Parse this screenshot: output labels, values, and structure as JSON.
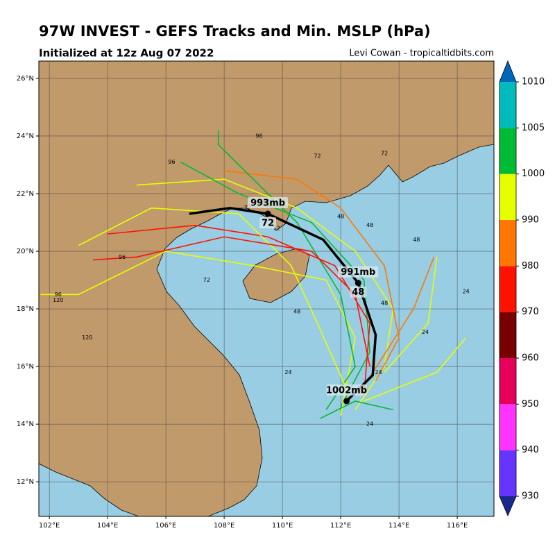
{
  "map": {
    "title": "97W INVEST - GEFS Tracks and Min. MSLP (hPa)",
    "subtitle": "Initialized at 12z Aug 07 2022",
    "credit": "Levi Cowan - tropicaltidbits.com",
    "xlim": [
      101.64,
      117.26
    ],
    "ylim": [
      10.8,
      26.6
    ],
    "xticks": [
      {
        "value": 102,
        "label": "102°E"
      },
      {
        "value": 104,
        "label": "104°E"
      },
      {
        "value": 106,
        "label": "106°E"
      },
      {
        "value": 108,
        "label": "108°E"
      },
      {
        "value": 110,
        "label": "110°E"
      },
      {
        "value": 112,
        "label": "112°E"
      },
      {
        "value": 114,
        "label": "114°E"
      },
      {
        "value": 116,
        "label": "116°E"
      }
    ],
    "yticks": [
      {
        "value": 12,
        "label": "12°N"
      },
      {
        "value": 14,
        "label": "14°N"
      },
      {
        "value": 16,
        "label": "16°N"
      },
      {
        "value": 18,
        "label": "18°N"
      },
      {
        "value": 20,
        "label": "20°N"
      },
      {
        "value": 22,
        "label": "22°N"
      },
      {
        "value": 24,
        "label": "24°N"
      },
      {
        "value": 26,
        "label": "26°N"
      }
    ],
    "grid": true,
    "colorbar": {
      "ticks": [
        930,
        940,
        950,
        960,
        970,
        980,
        990,
        1000,
        1005,
        1010
      ],
      "below_color": "#1a2a8c",
      "colors": [
        "#6633ff",
        "#ff33ff",
        "#e6005a",
        "#7a0000",
        "#ff1100",
        "#ff7700",
        "#e6ff00",
        "#00bb33",
        "#00bbbb"
      ],
      "above_color": "#0066bb"
    },
    "member_tracks": [
      {
        "color": "#e6ff00",
        "lon": [
          112.5,
          113.5,
          113.8,
          112.5,
          110.5,
          108,
          105
        ],
        "lat": [
          14.5,
          16,
          18,
          20,
          21.5,
          22.5,
          22.3
        ]
      },
      {
        "color": "#00bb33",
        "lon": [
          112,
          113,
          112.8,
          111,
          108.5,
          106.5
        ],
        "lat": [
          14.6,
          16.5,
          19,
          21,
          22,
          23.1
        ]
      },
      {
        "color": "#ff1100",
        "lon": [
          112.8,
          113,
          111.8,
          109.5,
          107,
          104
        ],
        "lat": [
          15,
          17.5,
          19.5,
          20.5,
          20.9,
          20.6
        ]
      },
      {
        "color": "#ff7700",
        "lon": [
          113.2,
          114,
          113.5,
          112,
          110.5,
          108
        ],
        "lat": [
          15.5,
          17,
          19.5,
          21.5,
          22.5,
          22.8
        ]
      },
      {
        "color": "#e6ff00",
        "lon": [
          112,
          112.5,
          111.5,
          109,
          106,
          103,
          101.7
        ],
        "lat": [
          14.3,
          17,
          19,
          19.5,
          20,
          18.5,
          18.5
        ]
      },
      {
        "color": "#e6ff00",
        "lon": [
          113.5,
          115,
          115.3
        ],
        "lat": [
          15.8,
          17.5,
          19.8
        ]
      },
      {
        "color": "#ff7700",
        "lon": [
          112.6,
          114.5,
          115.2
        ],
        "lat": [
          15,
          18,
          19.8
        ]
      },
      {
        "color": "#00bb33",
        "lon": [
          111.5,
          112.5,
          112,
          110.5,
          107.8,
          107.8
        ],
        "lat": [
          14.5,
          16,
          18.5,
          21,
          23.7,
          24.2
        ]
      },
      {
        "color": "#e6ff00",
        "lon": [
          112.3,
          111.2,
          110.3,
          108.5,
          105.5,
          103
        ],
        "lat": [
          15,
          17.5,
          19.5,
          21.3,
          21.5,
          20.2
        ]
      },
      {
        "color": "#ff1100",
        "lon": [
          113,
          112.5,
          111,
          108,
          105,
          103.5
        ],
        "lat": [
          16,
          18.5,
          20,
          20.5,
          19.8,
          19.7
        ]
      },
      {
        "color": "#e6ff00",
        "lon": [
          112.8,
          115.3,
          116.3
        ],
        "lat": [
          14.8,
          15.8,
          17.0
        ]
      },
      {
        "color": "#00bb33",
        "lon": [
          111.3,
          112.5,
          113.8
        ],
        "lat": [
          14.2,
          14.8,
          14.5
        ]
      }
    ],
    "hour_labels": [
      {
        "lon": 109.2,
        "lat": 24.0,
        "text": "96"
      },
      {
        "lon": 111.2,
        "lat": 23.3,
        "text": "72"
      },
      {
        "lon": 113.5,
        "lat": 23.4,
        "text": "72"
      },
      {
        "lon": 112,
        "lat": 21.2,
        "text": "48"
      },
      {
        "lon": 113,
        "lat": 20.9,
        "text": "48"
      },
      {
        "lon": 114.6,
        "lat": 20.4,
        "text": "48"
      },
      {
        "lon": 114.9,
        "lat": 17.2,
        "text": "24"
      },
      {
        "lon": 113.3,
        "lat": 15.8,
        "text": "24"
      },
      {
        "lon": 113,
        "lat": 14,
        "text": "24"
      },
      {
        "lon": 102.3,
        "lat": 18.3,
        "text": "120"
      },
      {
        "lon": 103.3,
        "lat": 17.0,
        "text": "120"
      },
      {
        "lon": 102.3,
        "lat": 18.5,
        "text": "96"
      },
      {
        "lon": 106.2,
        "lat": 23.1,
        "text": "96"
      },
      {
        "lon": 109.8,
        "lat": 20.8,
        "text": "72"
      },
      {
        "lon": 110.5,
        "lat": 17.9,
        "text": "48"
      },
      {
        "lon": 110.2,
        "lat": 15.8,
        "text": "24"
      },
      {
        "lon": 113.5,
        "lat": 18.2,
        "text": "48"
      },
      {
        "lon": 104.5,
        "lat": 19.8,
        "text": "96"
      },
      {
        "lon": 107.4,
        "lat": 19.0,
        "text": "72"
      },
      {
        "lon": 108.8,
        "lat": 21.5,
        "text": "72"
      },
      {
        "lon": 116.3,
        "lat": 18.6,
        "text": "24"
      }
    ],
    "mean_track": {
      "lon": [
        112.2,
        113.1,
        113.2,
        112.6,
        111.4,
        109.5,
        108.2,
        106.8
      ],
      "lat": [
        14.8,
        15.7,
        17.1,
        18.9,
        20.4,
        21.3,
        21.5,
        21.3
      ]
    },
    "mean_labels": [
      {
        "lon": 109.5,
        "lat": 21.3,
        "pressure": "993mb",
        "hour": "72"
      },
      {
        "lon": 112.6,
        "lat": 18.9,
        "pressure": "991mb",
        "hour": "48"
      },
      {
        "lon": 112.2,
        "lat": 14.8,
        "pressure": "1002mb"
      }
    ]
  }
}
